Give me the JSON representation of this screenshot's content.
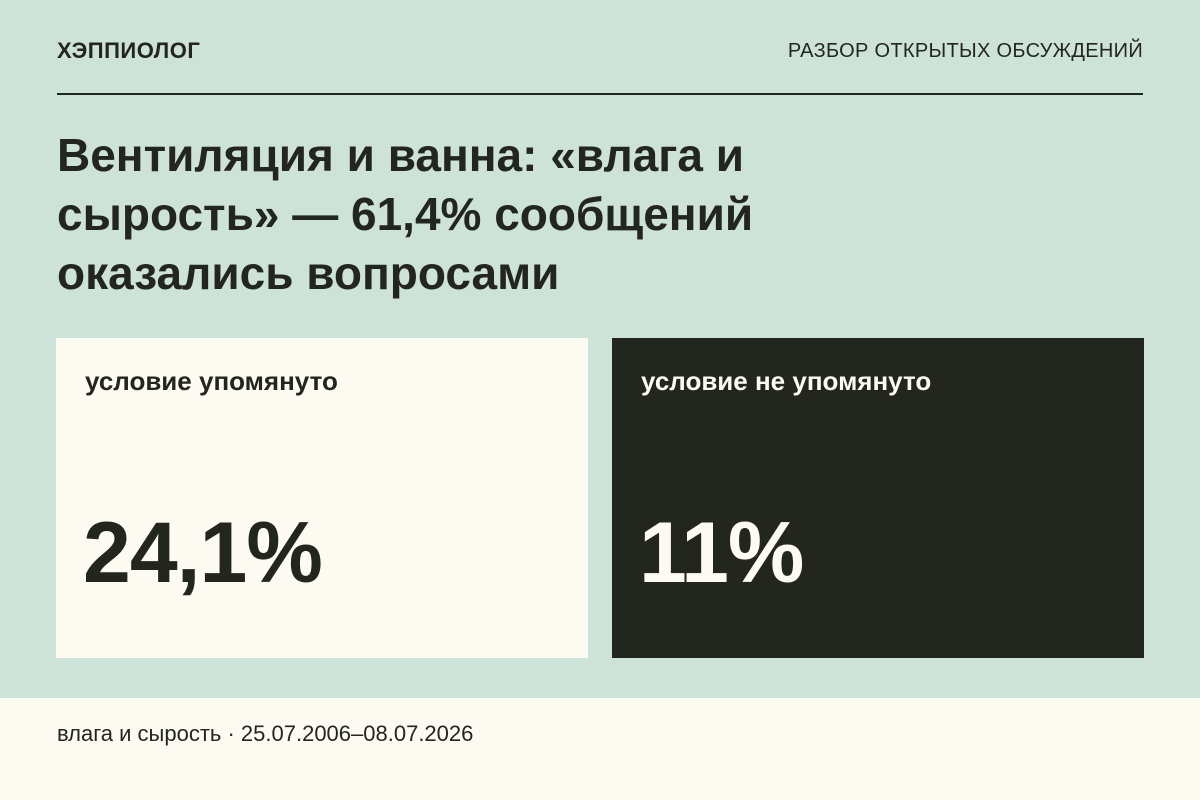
{
  "header": {
    "brand": "ХЭППИОЛОГ",
    "section": "РАЗБОР ОТКРЫТЫХ ОБСУЖДЕНИЙ"
  },
  "title": "Вентиляция и ванна: «влага и сырость» — 61,4% сообщений оказались вопросами",
  "cards": [
    {
      "label": "условие упомянуто",
      "value": "24,1%"
    },
    {
      "label": "условие не упомянуто",
      "value": "11%"
    }
  ],
  "footer": "влага и сырость · 25.07.2006–08.07.2026"
}
